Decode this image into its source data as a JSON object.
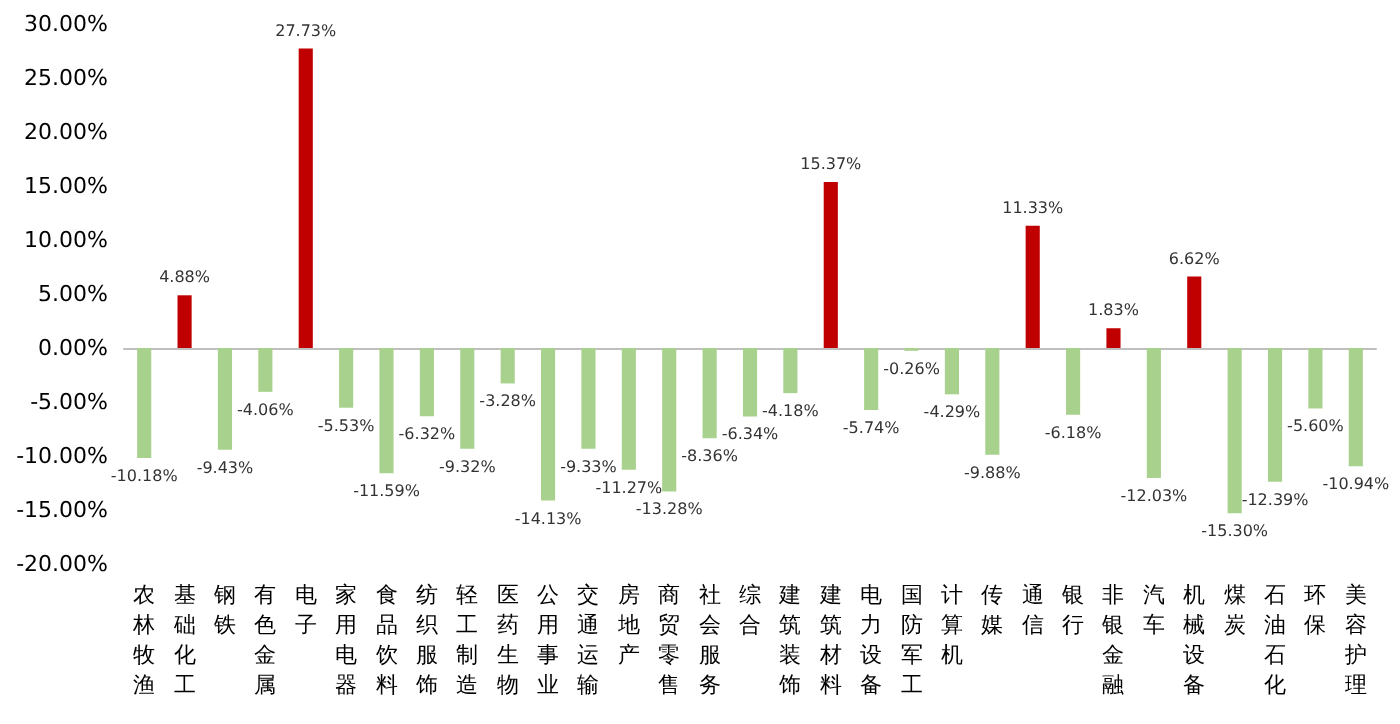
{
  "chart_data": {
    "type": "bar",
    "categories": [
      "农林牧渔",
      "基础化工",
      "钢铁",
      "有色金属",
      "电子",
      "家用电器",
      "食品饮料",
      "纺织服饰",
      "轻工制造",
      "医药生物",
      "公用事业",
      "交通运输",
      "房地产",
      "商贸零售",
      "社会服务",
      "综合",
      "建筑装饰",
      "建筑材料",
      "电力设备",
      "国防军工",
      "计算机",
      "传媒",
      "通信",
      "银行",
      "非银金融",
      "汽车",
      "机械设备",
      "煤炭",
      "石油石化",
      "环保",
      "美容护理"
    ],
    "values": [
      -10.18,
      4.88,
      -9.43,
      -4.06,
      27.73,
      -5.53,
      -11.59,
      -6.32,
      -9.32,
      -3.28,
      -14.13,
      -9.33,
      -11.27,
      -13.28,
      -8.36,
      -6.34,
      -4.18,
      15.37,
      -5.74,
      -0.26,
      -4.29,
      -9.88,
      11.33,
      -6.18,
      1.83,
      -12.03,
      6.62,
      -15.3,
      -12.39,
      -5.6,
      -10.94
    ],
    "value_labels": [
      "-10.18%",
      "4.88%",
      "-9.43%",
      "-4.06%",
      "27.73%",
      "-5.53%",
      "-11.59%",
      "-6.32%",
      "-9.32%",
      "-3.28%",
      "-14.13%",
      "-9.33%",
      "-11.27%",
      "-13.28%",
      "-8.36%",
      "-6.34%",
      "-4.18%",
      "15.37%",
      "-5.74%",
      "-0.26%",
      "-4.29%",
      "-9.88%",
      "11.33%",
      "-6.18%",
      "1.83%",
      "-12.03%",
      "6.62%",
      "-15.30%",
      "-12.39%",
      "-5.60%",
      "-10.94%"
    ],
    "colors": [
      "#a9d18e",
      "#c00000",
      "#a9d18e",
      "#a9d18e",
      "#c00000",
      "#a9d18e",
      "#a9d18e",
      "#a9d18e",
      "#a9d18e",
      "#a9d18e",
      "#a9d18e",
      "#a9d18e",
      "#a9d18e",
      "#a9d18e",
      "#a9d18e",
      "#a9d18e",
      "#a9d18e",
      "#c00000",
      "#a9d18e",
      "#a9d18e",
      "#a9d18e",
      "#a9d18e",
      "#c00000",
      "#a9d18e",
      "#c00000",
      "#a9d18e",
      "#c00000",
      "#a9d18e",
      "#a9d18e",
      "#a9d18e",
      "#a9d18e"
    ],
    "ylim": [
      -20,
      30
    ],
    "yticks": [
      {
        "value": -20,
        "label": "-20.00%"
      },
      {
        "value": -15,
        "label": "-15.00%"
      },
      {
        "value": -10,
        "label": "-10.00%"
      },
      {
        "value": -5,
        "label": "-5.00%"
      },
      {
        "value": 0,
        "label": "0.00%"
      },
      {
        "value": 5,
        "label": "5.00%"
      },
      {
        "value": 10,
        "label": "10.00%"
      },
      {
        "value": 15,
        "label": "15.00%"
      },
      {
        "value": 20,
        "label": "20.00%"
      },
      {
        "value": 25,
        "label": "25.00%"
      },
      {
        "value": 30,
        "label": "30.00%"
      }
    ]
  }
}
